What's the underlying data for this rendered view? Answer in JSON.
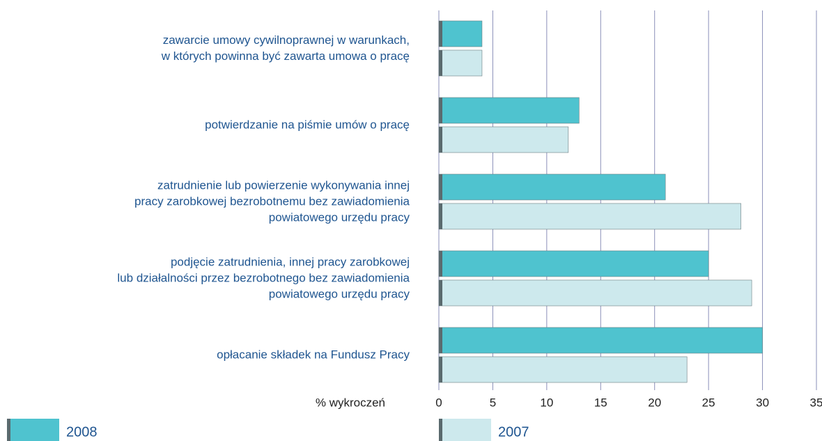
{
  "chart_data": {
    "type": "bar",
    "orientation": "horizontal",
    "categories": [
      [
        "zawarcie umowy cywilnoprawnej w warunkach,",
        "w których powinna być zawarta umowa o pracę"
      ],
      [
        "potwierdzanie na piśmie umów o pracę"
      ],
      [
        "zatrudnienie lub powierzenie wykonywania innej",
        "pracy zarobkowej bezrobotnemu bez zawiadomienia",
        "powiatowego urzędu pracy"
      ],
      [
        "podjęcie zatrudnienia, innej pracy zarobkowej",
        "lub działalności przez bezrobotnego bez zawiadomienia",
        "powiatowego urzędu pracy"
      ],
      [
        "opłacanie składek na Fundusz Pracy"
      ]
    ],
    "series": [
      {
        "name": "2008",
        "color": "#4fc3cf",
        "values": [
          4,
          13,
          21,
          25,
          30
        ]
      },
      {
        "name": "2007",
        "color": "#cde9ed",
        "values": [
          4,
          12,
          28,
          29,
          23
        ]
      }
    ],
    "xlabel": "% wykroczeń",
    "xlim": [
      0,
      35
    ],
    "xticks": [
      0,
      5,
      10,
      15,
      20,
      25,
      30,
      35
    ],
    "grid": true
  }
}
